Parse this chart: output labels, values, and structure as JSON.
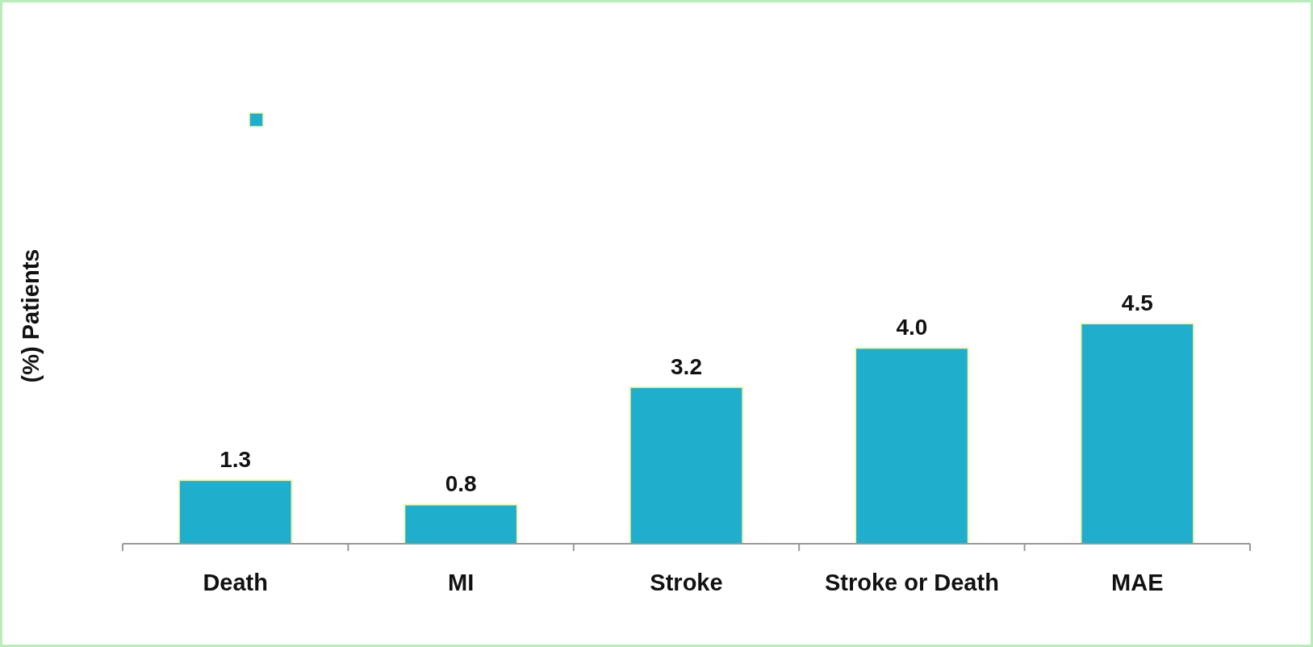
{
  "chart_data": {
    "type": "bar",
    "ylabel": "(%) Patients",
    "categories": [
      "Death",
      "MI",
      "Stroke",
      "Stroke or Death",
      "MAE"
    ],
    "values": [
      1.3,
      0.8,
      3.2,
      4.0,
      4.5
    ],
    "value_labels": [
      "1.3",
      "0.8",
      "3.2",
      "4.0",
      "4.5"
    ],
    "color": "#20aecd"
  }
}
